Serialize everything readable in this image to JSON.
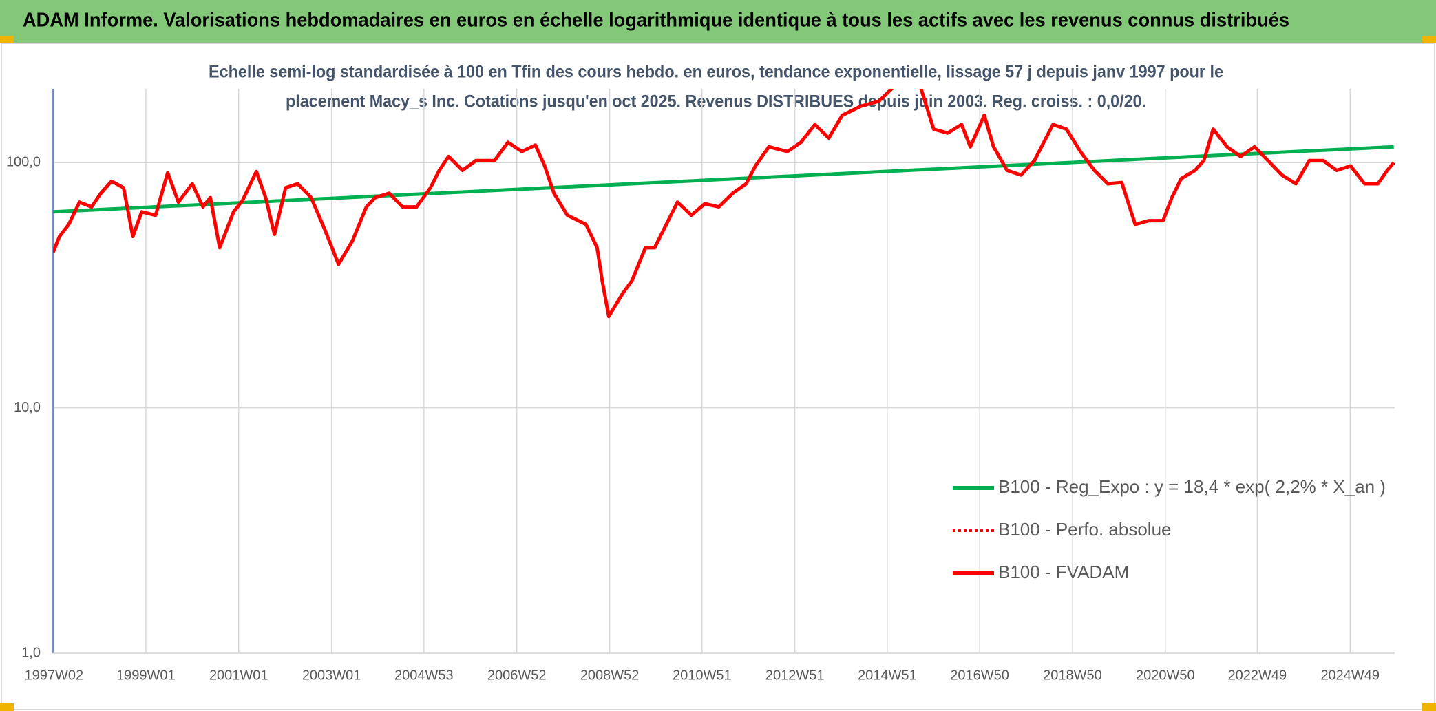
{
  "chart_data": {
    "type": "line",
    "title": "ADAM Informe. Valorisations hebdomadaires en euros en échelle logarithmique identique à tous les actifs avec les revenus connus distribués",
    "subtitle": [
      "Echelle semi-log standardisée à 100 en Tfin des cours hebdo. en euros, tendance exponentielle, lissage 57 j depuis janv 1997 pour le",
      "placement Macy_s Inc. Cotations jusqu'en oct 2025. Revenus DISTRIBUES depuis juin 2003. Reg. croiss. : 0,0/20."
    ],
    "xlim": [
      1997.0,
      2025.9
    ],
    "xticks": [
      {
        "value": 1997.02,
        "label": "1997W02"
      },
      {
        "value": 1999.0,
        "label": "1999W01"
      },
      {
        "value": 2001.0,
        "label": "2001W01"
      },
      {
        "value": 2003.0,
        "label": "2003W01"
      },
      {
        "value": 2004.99,
        "label": "2004W53"
      },
      {
        "value": 2006.99,
        "label": "2006W52"
      },
      {
        "value": 2008.99,
        "label": "2008W52"
      },
      {
        "value": 2010.98,
        "label": "2010W51"
      },
      {
        "value": 2012.98,
        "label": "2012W51"
      },
      {
        "value": 2014.97,
        "label": "2014W51"
      },
      {
        "value": 2016.96,
        "label": "2016W50"
      },
      {
        "value": 2018.96,
        "label": "2018W50"
      },
      {
        "value": 2020.96,
        "label": "2020W50"
      },
      {
        "value": 2022.94,
        "label": "2022W49"
      },
      {
        "value": 2024.94,
        "label": "2024W49"
      }
    ],
    "ylim": [
      1,
      200
    ],
    "yticks": [
      {
        "value": 1,
        "label": "1,0"
      },
      {
        "value": 10,
        "label": "10,0"
      },
      {
        "value": 100,
        "label": "100,0"
      }
    ],
    "log_y": true,
    "grid": true,
    "legend": "lower right",
    "series": [
      {
        "name": "B100 - Reg_Expo : y = 18,4 * exp( 2,2% *  X_an )",
        "color": "#00b050",
        "style": "solid",
        "x": [
          1997.0,
          2025.88
        ],
        "values": [
          63,
          116
        ]
      },
      {
        "name": "B100 - Perfo. absolue",
        "color": "#ff0000",
        "style": "dotted",
        "x": [],
        "values": []
      },
      {
        "name": "B100 - FVADAM",
        "color": "#ff0000",
        "style": "solid",
        "x": [
          1997.0,
          1997.14,
          1997.34,
          1997.57,
          1997.83,
          1998.03,
          1998.26,
          1998.52,
          1998.72,
          1998.91,
          1999.21,
          1999.47,
          1999.7,
          2000.0,
          2000.23,
          2000.39,
          2000.59,
          2000.89,
          2001.08,
          2001.38,
          2001.58,
          2001.77,
          2002.01,
          2002.27,
          2002.56,
          2002.86,
          2003.15,
          2003.45,
          2003.75,
          2003.94,
          2004.24,
          2004.53,
          2004.83,
          2005.13,
          2005.32,
          2005.52,
          2005.82,
          2006.11,
          2006.51,
          2006.8,
          2007.1,
          2007.39,
          2007.59,
          2007.79,
          2008.08,
          2008.48,
          2008.72,
          2008.83,
          2008.97,
          2009.27,
          2009.47,
          2009.76,
          2009.96,
          2010.25,
          2010.45,
          2010.75,
          2011.04,
          2011.34,
          2011.64,
          2011.93,
          2012.13,
          2012.42,
          2012.82,
          2013.11,
          2013.41,
          2013.71,
          2014.0,
          2014.4,
          2014.79,
          2015.09,
          2015.38,
          2015.68,
          2015.97,
          2016.27,
          2016.57,
          2016.76,
          2017.06,
          2017.26,
          2017.55,
          2017.85,
          2018.14,
          2018.54,
          2018.83,
          2019.13,
          2019.43,
          2019.72,
          2020.02,
          2020.31,
          2020.61,
          2020.91,
          2021.1,
          2021.3,
          2021.6,
          2021.79,
          2021.99,
          2022.29,
          2022.58,
          2022.88,
          2023.17,
          2023.47,
          2023.77,
          2024.06,
          2024.36,
          2024.65,
          2024.95,
          2025.25,
          2025.54,
          2025.74,
          2025.88
        ],
        "values": [
          43,
          50,
          56,
          69,
          66,
          75,
          84,
          79,
          50,
          63,
          61,
          91,
          69,
          82,
          66,
          72,
          45,
          63,
          70,
          92,
          72,
          51,
          79,
          82,
          72,
          53,
          38.5,
          48,
          66,
          72,
          75,
          66,
          66,
          79,
          93,
          106,
          93,
          102,
          102,
          121,
          111,
          118,
          97,
          75,
          61,
          56,
          45,
          33,
          23.6,
          29.3,
          33,
          45,
          45,
          58,
          69,
          61,
          68,
          66,
          75,
          82,
          97,
          116,
          111,
          121,
          143,
          126,
          156,
          170,
          178,
          202,
          215,
          205,
          137,
          132,
          143,
          116,
          156,
          116,
          93,
          89,
          102,
          143,
          137,
          111,
          93,
          82,
          83,
          56,
          58,
          58,
          72,
          86,
          93,
          102,
          137,
          116,
          106,
          116,
          102,
          89,
          82,
          102,
          102,
          93,
          97,
          82,
          82,
          93,
          100
        ]
      }
    ]
  }
}
